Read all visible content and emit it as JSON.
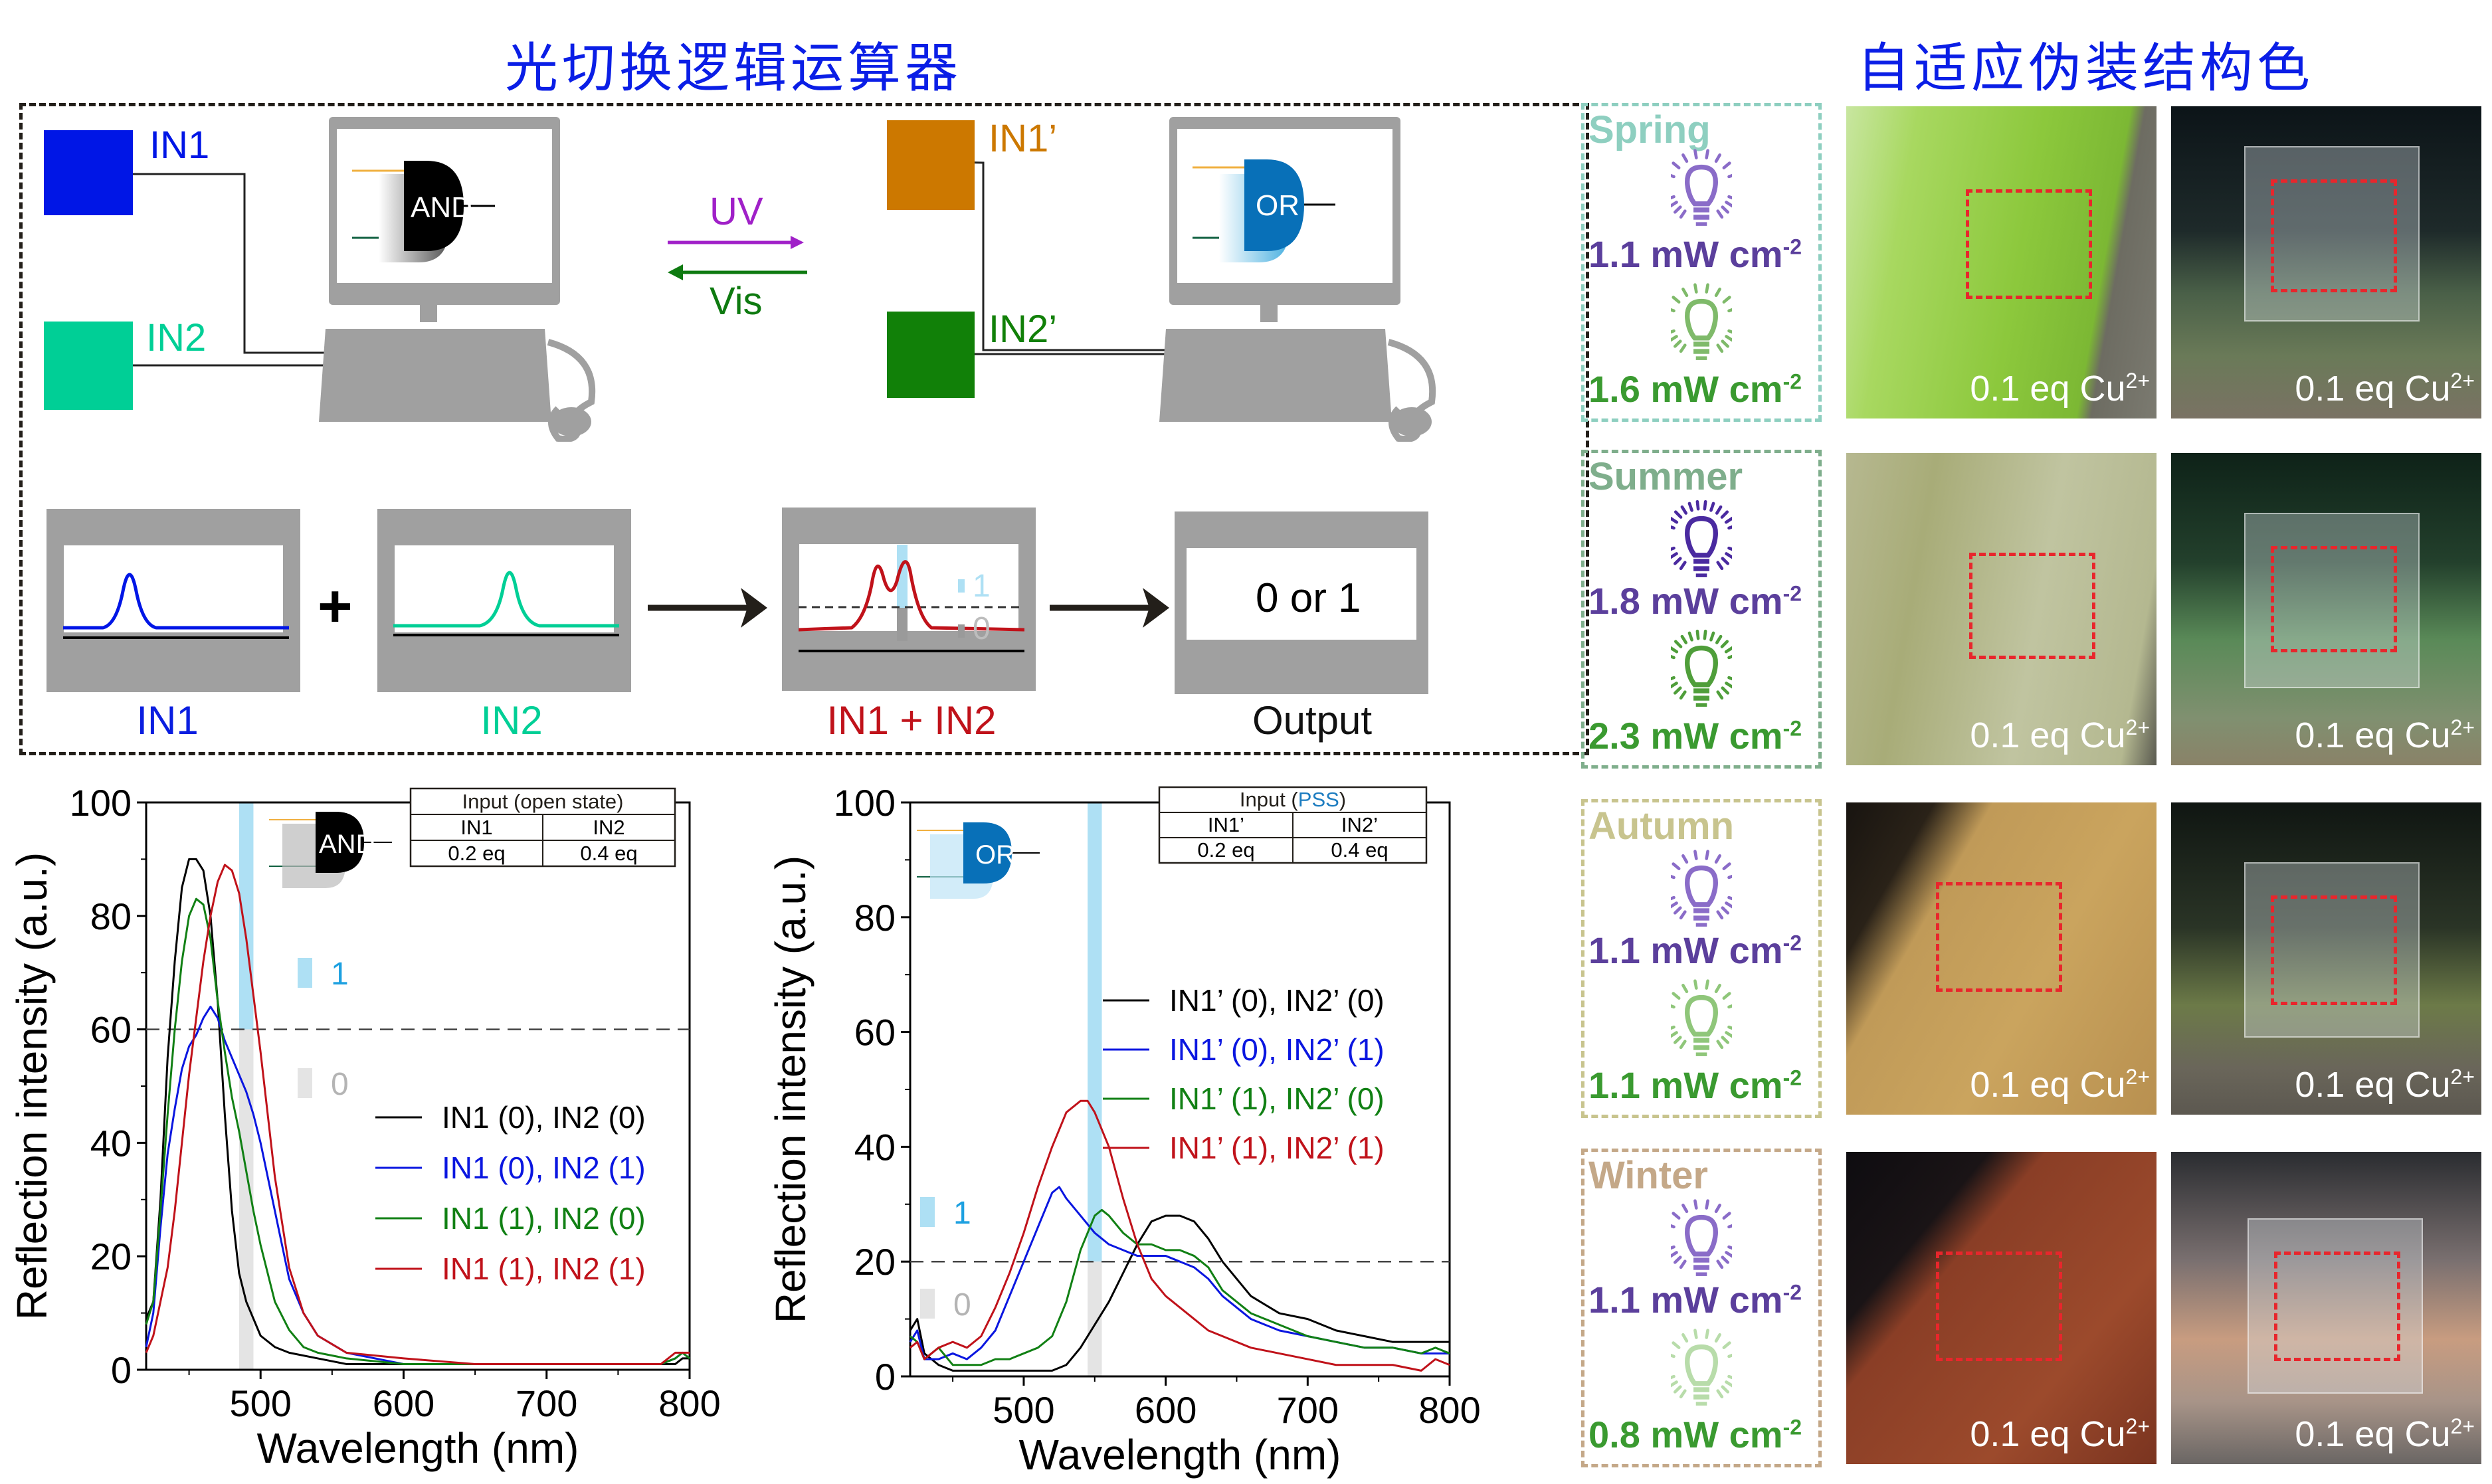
{
  "left_title": "光切换逻辑运算器",
  "right_title": "自适应伪装结构色",
  "diagram": {
    "and_side": {
      "in1_label": "IN1",
      "in2_label": "IN2",
      "gate_label": "AND",
      "in1_color": "#0016e6",
      "in2_color": "#00cf96"
    },
    "or_side": {
      "in1_label": "IN1’",
      "in2_label": "IN2’",
      "gate_label": "OR",
      "in1_color": "#cc7800",
      "in2_color": "#118008"
    },
    "uv_label": "UV",
    "vis_label": "Vis",
    "uv_color": "#a020c8",
    "vis_color": "#0e7a10",
    "panels": {
      "in1_caption": "IN1",
      "in2_caption": "IN2",
      "sum_caption": "IN1 + IN2",
      "output_caption": "Output",
      "plus": "+",
      "output_text": "0 or 1",
      "level_one": "1",
      "level_zero": "0"
    }
  },
  "chart_data": [
    {
      "type": "line",
      "gate": "AND",
      "xlabel": "Wavelength (nm)",
      "ylabel": "Reflection intensity (a.u.)",
      "xlim": [
        420,
        800
      ],
      "ylim": [
        0,
        100
      ],
      "xticks": [
        500,
        600,
        700,
        800
      ],
      "yticks": [
        0,
        20,
        40,
        60,
        80,
        100
      ],
      "threshold": 60,
      "band": [
        485,
        495
      ],
      "level_one": "1",
      "level_zero": "0",
      "legend_position": "center-right",
      "table": {
        "title": "Input (open state)",
        "headers": [
          "IN1",
          "IN2"
        ],
        "values": [
          "0.2 eq",
          "0.4 eq"
        ]
      },
      "series": [
        {
          "name": "IN1 (0), IN2 (0)",
          "color": "#000000",
          "x": [
            420,
            425,
            430,
            435,
            440,
            445,
            450,
            455,
            460,
            465,
            470,
            475,
            480,
            485,
            490,
            495,
            500,
            510,
            520,
            540,
            560,
            600,
            650,
            700,
            750,
            780,
            790,
            795,
            800
          ],
          "y": [
            9,
            12,
            30,
            55,
            72,
            85,
            90,
            90,
            88,
            80,
            65,
            45,
            28,
            17,
            12,
            9,
            6,
            4,
            3,
            2,
            1,
            1,
            1,
            1,
            1,
            1,
            1,
            2,
            2
          ]
        },
        {
          "name": "IN1 (0), IN2 (1)",
          "color": "#0a16e0",
          "x": [
            420,
            425,
            430,
            435,
            440,
            445,
            450,
            455,
            460,
            465,
            470,
            475,
            480,
            485,
            490,
            495,
            500,
            510,
            520,
            530,
            540,
            560,
            600,
            650,
            700,
            750,
            780,
            790,
            795,
            800
          ],
          "y": [
            4,
            10,
            25,
            38,
            46,
            53,
            57,
            59,
            62,
            64,
            62,
            58,
            55,
            52,
            49,
            45,
            40,
            28,
            16,
            10,
            6,
            3,
            1,
            1,
            1,
            1,
            1,
            2,
            3,
            2
          ]
        },
        {
          "name": "IN1 (1), IN2 (0)",
          "color": "#118014",
          "x": [
            420,
            425,
            430,
            435,
            440,
            445,
            450,
            455,
            460,
            465,
            470,
            475,
            480,
            485,
            490,
            495,
            500,
            510,
            520,
            530,
            540,
            560,
            600,
            650,
            700,
            750,
            780,
            790,
            795,
            800
          ],
          "y": [
            8,
            12,
            28,
            45,
            60,
            72,
            80,
            83,
            82,
            76,
            65,
            56,
            48,
            42,
            35,
            28,
            22,
            12,
            7,
            4,
            3,
            2,
            1,
            1,
            1,
            1,
            1,
            2,
            3,
            2
          ]
        },
        {
          "name": "IN1 (1), IN2 (1)",
          "color": "#c0121a",
          "x": [
            420,
            425,
            430,
            435,
            440,
            445,
            450,
            455,
            460,
            465,
            470,
            475,
            480,
            485,
            490,
            495,
            500,
            510,
            520,
            530,
            540,
            560,
            600,
            650,
            700,
            750,
            780,
            790,
            795,
            800
          ],
          "y": [
            3,
            6,
            12,
            18,
            28,
            40,
            52,
            62,
            72,
            80,
            86,
            89,
            88,
            84,
            76,
            66,
            56,
            34,
            18,
            10,
            6,
            3,
            2,
            1,
            1,
            1,
            1,
            3,
            3,
            3
          ]
        }
      ]
    },
    {
      "type": "line",
      "gate": "OR",
      "xlabel": "Wavelength (nm)",
      "ylabel": "Reflection intensity (a.u.)",
      "xlim": [
        420,
        800
      ],
      "ylim": [
        0,
        100
      ],
      "xticks": [
        500,
        600,
        700,
        800
      ],
      "yticks": [
        0,
        20,
        40,
        60,
        80,
        100
      ],
      "threshold": 20,
      "band": [
        545,
        555
      ],
      "level_one": "1",
      "level_zero": "0",
      "legend_position": "center-right",
      "table": {
        "title_prefix": "Input (",
        "title_highlight": "PSS",
        "title_suffix": ")",
        "headers": [
          "IN1’",
          "IN2’"
        ],
        "values": [
          "0.2 eq",
          "0.4 eq"
        ]
      },
      "series": [
        {
          "name": "IN1’ (0), IN2’ (0)",
          "color": "#000000",
          "x": [
            420,
            425,
            430,
            440,
            450,
            460,
            470,
            480,
            500,
            510,
            520,
            530,
            540,
            550,
            560,
            570,
            580,
            590,
            600,
            610,
            620,
            630,
            640,
            660,
            680,
            700,
            720,
            740,
            760,
            780,
            790,
            800
          ],
          "y": [
            8,
            10,
            4,
            2,
            1,
            1,
            1,
            1,
            1,
            1,
            1,
            2,
            5,
            9,
            13,
            18,
            23,
            27,
            28,
            28,
            27,
            24,
            20,
            14,
            11,
            10,
            8,
            7,
            6,
            6,
            6,
            6
          ]
        },
        {
          "name": "IN1’ (0), IN2’ (1)",
          "color": "#0a16e0",
          "x": [
            420,
            425,
            430,
            440,
            450,
            460,
            470,
            480,
            490,
            500,
            510,
            520,
            525,
            530,
            540,
            550,
            560,
            570,
            580,
            590,
            600,
            610,
            620,
            630,
            640,
            660,
            680,
            700,
            720,
            740,
            760,
            780,
            790,
            800
          ],
          "y": [
            6,
            8,
            3,
            3,
            4,
            3,
            5,
            8,
            14,
            20,
            26,
            32,
            33,
            31,
            28,
            25,
            23,
            22,
            21,
            21,
            21,
            20,
            19,
            17,
            14,
            10,
            8,
            7,
            6,
            5,
            5,
            4,
            4,
            4
          ]
        },
        {
          "name": "IN1’ (1), IN2’ (0)",
          "color": "#118014",
          "x": [
            420,
            425,
            430,
            440,
            450,
            460,
            470,
            480,
            490,
            500,
            510,
            520,
            530,
            540,
            550,
            555,
            560,
            570,
            580,
            590,
            600,
            610,
            620,
            630,
            640,
            660,
            680,
            700,
            720,
            740,
            760,
            780,
            790,
            800
          ],
          "y": [
            7,
            6,
            3,
            5,
            2,
            2,
            2,
            3,
            3,
            4,
            5,
            7,
            13,
            22,
            28,
            29,
            28,
            25,
            23,
            23,
            22,
            22,
            21,
            19,
            15,
            11,
            9,
            7,
            6,
            5,
            5,
            4,
            5,
            4
          ]
        },
        {
          "name": "IN1’ (1), IN2’ (1)",
          "color": "#c0121a",
          "x": [
            420,
            425,
            430,
            440,
            450,
            460,
            470,
            480,
            490,
            500,
            510,
            520,
            530,
            540,
            545,
            550,
            560,
            570,
            580,
            590,
            600,
            610,
            620,
            630,
            640,
            660,
            680,
            700,
            720,
            740,
            760,
            780,
            790,
            800
          ],
          "y": [
            5,
            6,
            3,
            5,
            6,
            5,
            7,
            12,
            18,
            25,
            33,
            40,
            46,
            48,
            48,
            46,
            40,
            31,
            23,
            17,
            14,
            12,
            10,
            8,
            7,
            5,
            4,
            3,
            2,
            2,
            2,
            1,
            3,
            2
          ]
        }
      ]
    }
  ],
  "seasons": [
    {
      "name": "Spring",
      "color": "#8ecfc0",
      "uv_power": "1.1 mW cm",
      "vis_power": "1.6 mW cm",
      "exp": "-2",
      "uv_color": "#5b3f9c",
      "vis_color": "#3a9a30",
      "uv_bulb": "#8a6cc8",
      "vis_bulb": "#7fba6a",
      "photo1_conc": "0.1 eq  Cu",
      "photo2_conc": "0.1 eq  Cu",
      "charge": "2+"
    },
    {
      "name": "Summer",
      "color": "#7fae8c",
      "uv_power": "1.8 mW cm",
      "vis_power": "2.3 mW cm",
      "exp": "-2",
      "uv_color": "#5b3f9c",
      "vis_color": "#3a9a30",
      "uv_bulb": "#4a2aa0",
      "vis_bulb": "#4f9e3a",
      "photo1_conc": "0.1 eq  Cu",
      "photo2_conc": "0.1 eq  Cu",
      "charge": "2+"
    },
    {
      "name": "Autumn",
      "color": "#c8c48e",
      "uv_power": "1.1 mW cm",
      "vis_power": "1.1 mW cm",
      "exp": "-2",
      "uv_color": "#5b3f9c",
      "vis_color": "#3a9a30",
      "uv_bulb": "#8a6cc8",
      "vis_bulb": "#8fc67a",
      "photo1_conc": "0.1 eq  Cu",
      "photo2_conc": "0.1 eq  Cu",
      "charge": "2+"
    },
    {
      "name": "Winter",
      "color": "#c4a888",
      "uv_power": "1.1 mW cm",
      "vis_power": "0.8 mW cm",
      "exp": "-2",
      "uv_color": "#5b3f9c",
      "vis_color": "#3a9a30",
      "uv_bulb": "#8a6cc8",
      "vis_bulb": "#b8dcaa",
      "photo1_conc": "0.1 eq  Cu",
      "photo2_conc": "0.1 eq  Cu",
      "charge": "2+"
    }
  ]
}
